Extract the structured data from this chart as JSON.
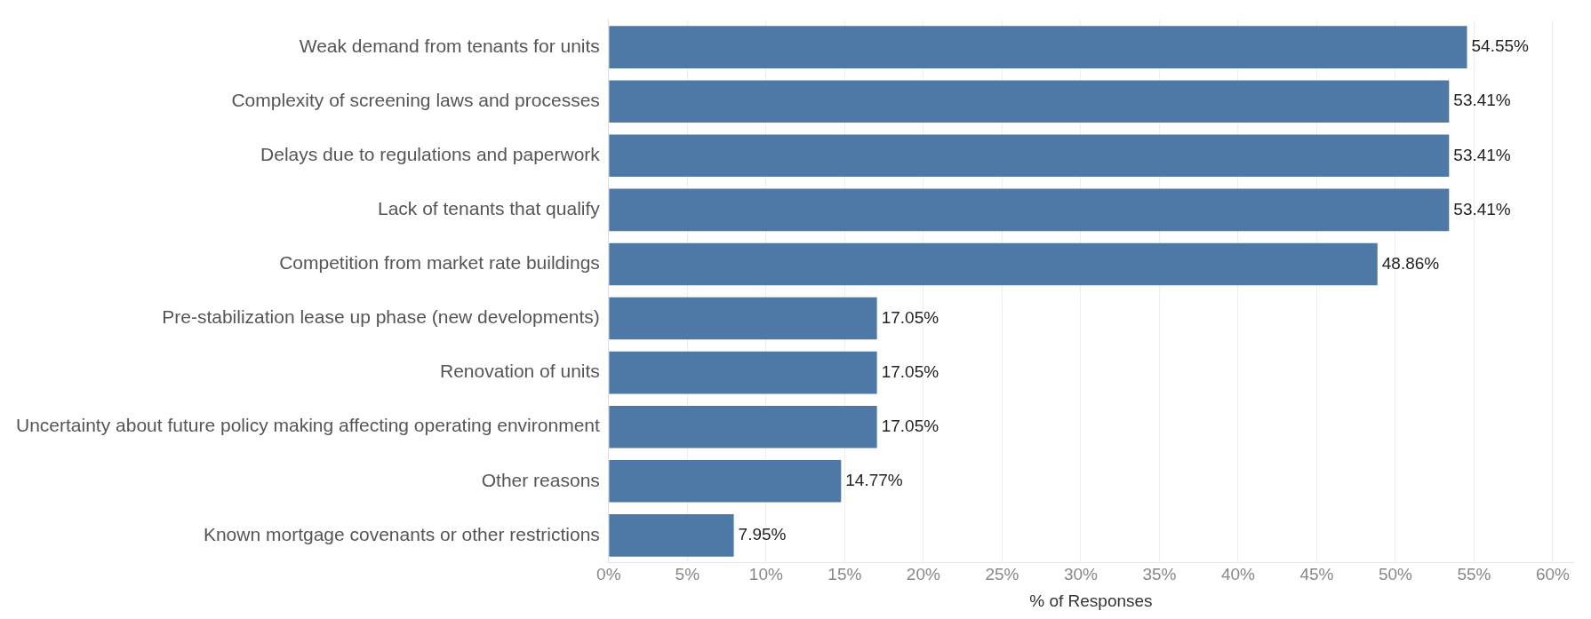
{
  "chart_data": {
    "type": "bar",
    "orientation": "horizontal",
    "xlabel": "% of Responses",
    "categories": [
      "Weak demand from tenants for units",
      "Complexity of screening laws and processes",
      "Delays due to regulations and paperwork",
      "Lack of tenants that qualify",
      "Competition from market rate buildings",
      "Pre-stabilization lease up phase (new developments)",
      "Renovation of units",
      "Uncertainty about future policy making affecting operating environment",
      "Other reasons",
      "Known mortgage covenants or other restrictions"
    ],
    "values": [
      54.55,
      53.41,
      53.41,
      53.41,
      48.86,
      17.05,
      17.05,
      17.05,
      14.77,
      7.95
    ],
    "value_labels": [
      "54.55%",
      "53.41%",
      "53.41%",
      "53.41%",
      "48.86%",
      "17.05%",
      "17.05%",
      "17.05%",
      "14.77%",
      "7.95%"
    ],
    "color": "#4e79a7",
    "xlim": [
      0,
      61.3
    ],
    "xticks": [
      {
        "value": 0,
        "label": "0%"
      },
      {
        "value": 5,
        "label": "5%"
      },
      {
        "value": 10,
        "label": "10%"
      },
      {
        "value": 15,
        "label": "15%"
      },
      {
        "value": 20,
        "label": "20%"
      },
      {
        "value": 25,
        "label": "25%"
      },
      {
        "value": 30,
        "label": "30%"
      },
      {
        "value": 35,
        "label": "35%"
      },
      {
        "value": 40,
        "label": "40%"
      },
      {
        "value": 45,
        "label": "45%"
      },
      {
        "value": 50,
        "label": "50%"
      },
      {
        "value": 55,
        "label": "55%"
      },
      {
        "value": 60,
        "label": "60%"
      }
    ],
    "grid": "x",
    "legend": false
  }
}
